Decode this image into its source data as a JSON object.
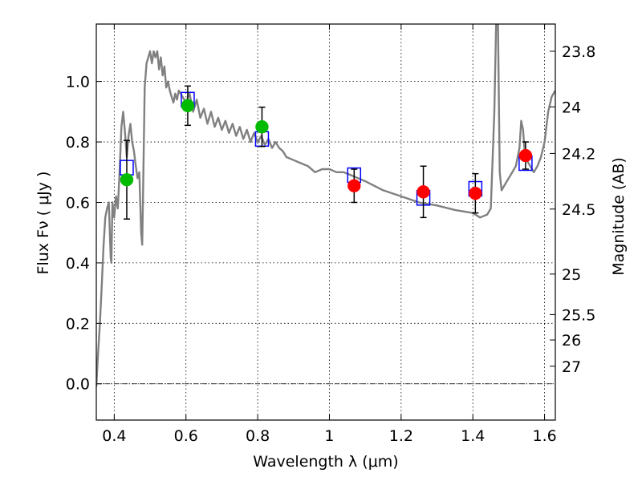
{
  "chart_data": {
    "type": "scatter",
    "xlabel": "Wavelength  λ (μm)",
    "ylabel": "Flux  Fν  ( μJy )",
    "ylabel_right": "Magnitude (AB)",
    "xlim": [
      0.35,
      1.63
    ],
    "ylim": [
      -0.12,
      1.19
    ],
    "x_ticks": [
      0.4,
      0.6,
      0.8,
      1.0,
      1.2,
      1.4,
      1.6
    ],
    "x_tick_labels": [
      "0.4",
      "0.6",
      "0.8",
      "1",
      "1.2",
      "1.4",
      "1.6"
    ],
    "y_ticks": [
      0.0,
      0.2,
      0.4,
      0.6,
      0.8,
      1.0
    ],
    "y_tick_labels": [
      "0.0",
      "0.2",
      "0.4",
      "0.6",
      "0.8",
      "1.0"
    ],
    "y_right_ticks": [
      {
        "label": "23.8",
        "flux": 1.1
      },
      {
        "label": "24",
        "flux": 0.916
      },
      {
        "label": "24.2",
        "flux": 0.762
      },
      {
        "label": "24.5",
        "flux": 0.578
      },
      {
        "label": "25",
        "flux": 0.363
      },
      {
        "label": "25.5",
        "flux": 0.229
      },
      {
        "label": "26",
        "flux": 0.145
      },
      {
        "label": "27",
        "flux": 0.058
      }
    ],
    "grid": true,
    "zero_line": true,
    "series": [
      {
        "role": "template_spectrum",
        "color": "#808080",
        "x": [
          0.35,
          0.355,
          0.36,
          0.365,
          0.37,
          0.375,
          0.38,
          0.385,
          0.39,
          0.392,
          0.395,
          0.4,
          0.405,
          0.41,
          0.415,
          0.42,
          0.425,
          0.43,
          0.435,
          0.44,
          0.445,
          0.45,
          0.455,
          0.46,
          0.465,
          0.47,
          0.475,
          0.478,
          0.48,
          0.485,
          0.49,
          0.495,
          0.5,
          0.505,
          0.51,
          0.515,
          0.52,
          0.525,
          0.53,
          0.535,
          0.54,
          0.545,
          0.55,
          0.555,
          0.56,
          0.565,
          0.57,
          0.575,
          0.58,
          0.59,
          0.6,
          0.61,
          0.62,
          0.63,
          0.64,
          0.65,
          0.66,
          0.67,
          0.68,
          0.69,
          0.7,
          0.71,
          0.72,
          0.73,
          0.74,
          0.75,
          0.76,
          0.77,
          0.78,
          0.79,
          0.8,
          0.81,
          0.82,
          0.83,
          0.84,
          0.85,
          0.86,
          0.87,
          0.88,
          0.9,
          0.92,
          0.94,
          0.96,
          0.98,
          1.0,
          1.02,
          1.04,
          1.06,
          1.08,
          1.1,
          1.15,
          1.2,
          1.25,
          1.3,
          1.35,
          1.4,
          1.42,
          1.44,
          1.45,
          1.46,
          1.465,
          1.47,
          1.475,
          1.48,
          1.49,
          1.5,
          1.51,
          1.52,
          1.53,
          1.535,
          1.54,
          1.545,
          1.55,
          1.56,
          1.57,
          1.58,
          1.59,
          1.6,
          1.61,
          1.62,
          1.63
        ],
        "y": [
          -0.01,
          0.1,
          0.2,
          0.32,
          0.45,
          0.55,
          0.58,
          0.6,
          0.42,
          0.4,
          0.6,
          0.55,
          0.62,
          0.58,
          0.7,
          0.85,
          0.9,
          0.83,
          0.75,
          0.82,
          0.86,
          0.8,
          0.77,
          0.72,
          0.68,
          0.7,
          0.5,
          0.46,
          0.6,
          0.98,
          1.06,
          1.08,
          1.1,
          1.06,
          1.1,
          1.08,
          1.1,
          1.04,
          1.08,
          1.02,
          1.05,
          0.98,
          1.0,
          0.97,
          0.95,
          0.93,
          0.96,
          0.94,
          0.97,
          0.95,
          0.93,
          0.96,
          0.9,
          0.94,
          0.88,
          0.91,
          0.86,
          0.9,
          0.85,
          0.88,
          0.84,
          0.87,
          0.83,
          0.86,
          0.82,
          0.85,
          0.81,
          0.84,
          0.8,
          0.83,
          0.8,
          0.82,
          0.79,
          0.81,
          0.78,
          0.8,
          0.78,
          0.77,
          0.75,
          0.74,
          0.73,
          0.72,
          0.7,
          0.71,
          0.71,
          0.7,
          0.7,
          0.69,
          0.68,
          0.67,
          0.64,
          0.62,
          0.6,
          0.59,
          0.575,
          0.565,
          0.55,
          0.56,
          0.58,
          0.9,
          1.2,
          1.2,
          0.7,
          0.64,
          0.66,
          0.68,
          0.7,
          0.72,
          0.78,
          0.87,
          0.84,
          0.76,
          0.74,
          0.72,
          0.7,
          0.72,
          0.75,
          0.8,
          0.9,
          0.95,
          0.97
        ]
      },
      {
        "role": "model_photometry",
        "marker": "open-square",
        "color": "#0000ff",
        "x": [
          0.435,
          0.605,
          0.812,
          1.069,
          1.262,
          1.407,
          1.547
        ],
        "y": [
          0.715,
          0.94,
          0.81,
          0.69,
          0.615,
          0.645,
          0.73
        ]
      },
      {
        "role": "observed_green",
        "marker": "circle",
        "color": "#00bb00",
        "x": [
          0.435,
          0.605,
          0.812
        ],
        "y": [
          0.675,
          0.92,
          0.85
        ],
        "yerr": [
          0.13,
          0.065,
          0.065
        ]
      },
      {
        "role": "observed_red",
        "marker": "circle",
        "color": "#ff0000",
        "x": [
          1.069,
          1.262,
          1.407,
          1.547
        ],
        "y": [
          0.655,
          0.635,
          0.63,
          0.755
        ],
        "yerr": [
          0.055,
          0.085,
          0.065,
          0.045
        ]
      }
    ]
  }
}
